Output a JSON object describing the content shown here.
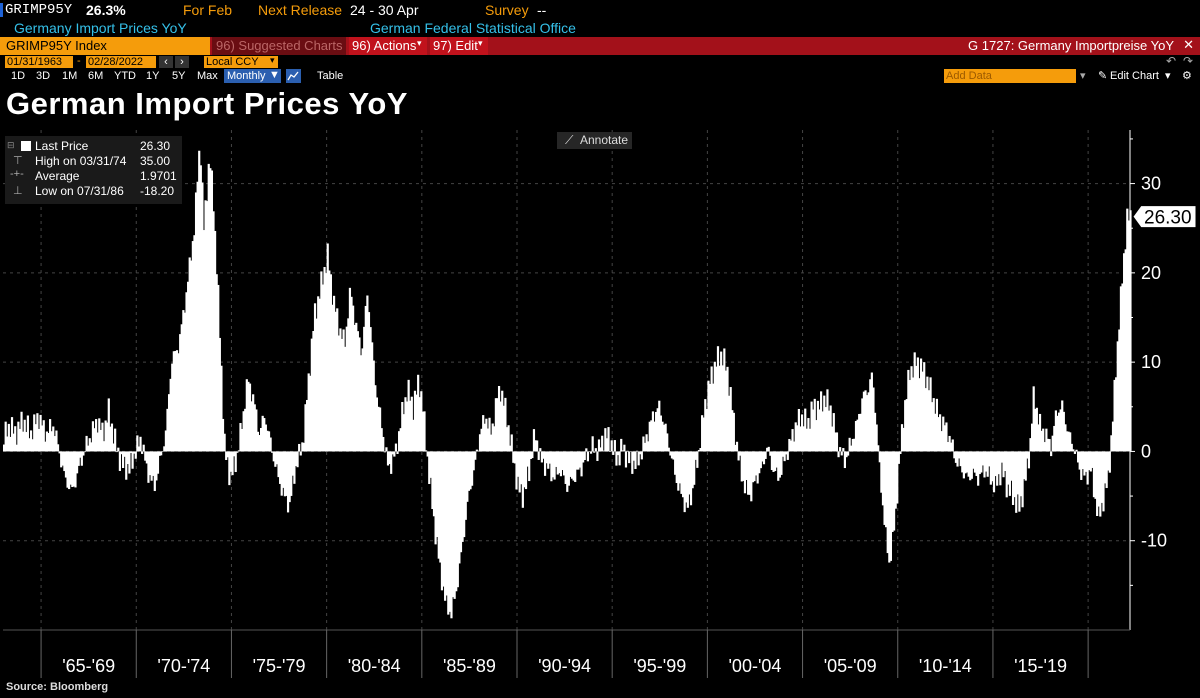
{
  "header": {
    "ticker": "GRIMP95Y",
    "last_value": "26.3%",
    "for_period": "For Feb",
    "next_release_label": "Next Release",
    "next_release_dates": "24 - 30 Apr",
    "survey_label": "Survey",
    "survey_value": "--",
    "description": "Germany Import Prices YoY",
    "source_agency": "German Federal Statistical Office"
  },
  "toolbar": {
    "security": "GRIMP95Y Index",
    "suggested_charts": "96) Suggested Charts",
    "actions": "96) Actions",
    "edit": "97) Edit",
    "chart_id": "G 1727: Germany Importpreise YoY",
    "start_date": "01/31/1963",
    "end_date": "02/28/2022",
    "currency": "Local CCY",
    "ranges": [
      "1D",
      "3D",
      "1M",
      "6M",
      "YTD",
      "1Y",
      "5Y",
      "Max"
    ],
    "frequency": "Monthly",
    "table": "Table",
    "add_data": "Add Data",
    "edit_chart": "Edit Chart"
  },
  "legend": {
    "last_price_label": "Last Price",
    "last_price": "26.30",
    "high_label": "High on 03/31/74",
    "high": "35.00",
    "average_label": "Average",
    "average": "1.9701",
    "low_label": "Low on 07/31/86",
    "low": "-18.20"
  },
  "annotate_label": "Annotate",
  "source": "Source: Bloomberg",
  "colors": {
    "background": "#000000",
    "bars": "#ffffff",
    "accent_orange": "#f59c0b",
    "menu_red": "#a3111a",
    "cyan": "#35c0e8"
  },
  "chart_data": {
    "type": "area",
    "title": "German Import Prices YoY",
    "series": [
      {
        "name": "GRIMP95Y Index",
        "anchors": [
          [
            1963.0,
            1.5
          ],
          [
            1963.3,
            3.0
          ],
          [
            1963.6,
            2.0
          ],
          [
            1964.0,
            3.5
          ],
          [
            1964.4,
            2.0
          ],
          [
            1964.8,
            4.0
          ],
          [
            1965.2,
            2.0
          ],
          [
            1965.6,
            3.0
          ],
          [
            1965.9,
            0.0
          ],
          [
            1966.2,
            -3.0
          ],
          [
            1966.6,
            -4.5
          ],
          [
            1966.9,
            -2.0
          ],
          [
            1967.3,
            0.5
          ],
          [
            1967.6,
            2.0
          ],
          [
            1967.9,
            3.5
          ],
          [
            1968.2,
            2.0
          ],
          [
            1968.5,
            4.5
          ],
          [
            1968.9,
            0.5
          ],
          [
            1969.2,
            -1.5
          ],
          [
            1969.6,
            -2.0
          ],
          [
            1969.9,
            0.0
          ],
          [
            1970.2,
            1.5
          ],
          [
            1970.5,
            -2.0
          ],
          [
            1970.9,
            -4.0
          ],
          [
            1971.2,
            -1.0
          ],
          [
            1971.5,
            2.0
          ],
          [
            1971.8,
            10.0
          ],
          [
            1972.2,
            12.0
          ],
          [
            1972.6,
            18.0
          ],
          [
            1973.0,
            25.0
          ],
          [
            1973.3,
            35.0
          ],
          [
            1973.5,
            25.0
          ],
          [
            1973.8,
            33.0
          ],
          [
            1974.0,
            28.0
          ],
          [
            1974.3,
            15.0
          ],
          [
            1974.6,
            0.0
          ],
          [
            1974.9,
            -3.0
          ],
          [
            1975.2,
            -1.0
          ],
          [
            1975.5,
            3.0
          ],
          [
            1975.8,
            8.0
          ],
          [
            1976.1,
            6.0
          ],
          [
            1976.4,
            2.0
          ],
          [
            1976.7,
            4.0
          ],
          [
            1977.0,
            1.0
          ],
          [
            1977.3,
            -2.0
          ],
          [
            1977.7,
            -5.0
          ],
          [
            1978.0,
            -6.0
          ],
          [
            1978.3,
            -2.0
          ],
          [
            1978.7,
            1.0
          ],
          [
            1979.0,
            8.0
          ],
          [
            1979.3,
            15.0
          ],
          [
            1979.7,
            19.0
          ],
          [
            1980.0,
            22.0
          ],
          [
            1980.3,
            17.0
          ],
          [
            1980.6,
            14.0
          ],
          [
            1980.9,
            12.0
          ],
          [
            1981.2,
            18.0
          ],
          [
            1981.5,
            14.0
          ],
          [
            1981.8,
            11.0
          ],
          [
            1982.1,
            18.0
          ],
          [
            1982.4,
            10.0
          ],
          [
            1982.6,
            6.0
          ],
          [
            1982.9,
            2.0
          ],
          [
            1983.2,
            -2.0
          ],
          [
            1983.6,
            0.0
          ],
          [
            1983.9,
            4.0
          ],
          [
            1984.2,
            7.0
          ],
          [
            1984.5,
            5.0
          ],
          [
            1984.8,
            8.0
          ],
          [
            1985.0,
            5.0
          ],
          [
            1985.3,
            -2.0
          ],
          [
            1985.6,
            -8.0
          ],
          [
            1985.9,
            -13.0
          ],
          [
            1986.2,
            -17.0
          ],
          [
            1986.5,
            -18.2
          ],
          [
            1986.8,
            -15.0
          ],
          [
            1987.1,
            -10.0
          ],
          [
            1987.4,
            -5.0
          ],
          [
            1987.7,
            -2.0
          ],
          [
            1988.0,
            2.0
          ],
          [
            1988.3,
            4.0
          ],
          [
            1988.6,
            2.0
          ],
          [
            1988.9,
            6.0
          ],
          [
            1989.1,
            7.0
          ],
          [
            1989.4,
            4.0
          ],
          [
            1989.7,
            0.0
          ],
          [
            1990.0,
            -4.0
          ],
          [
            1990.3,
            -5.0
          ],
          [
            1990.6,
            -2.0
          ],
          [
            1990.9,
            2.0
          ],
          [
            1991.2,
            -1.0
          ],
          [
            1991.6,
            -2.0
          ],
          [
            1991.9,
            -3.0
          ],
          [
            1992.2,
            -2.0
          ],
          [
            1992.6,
            -4.0
          ],
          [
            1992.9,
            -3.0
          ],
          [
            1993.3,
            -2.0
          ],
          [
            1993.6,
            -0.5
          ],
          [
            1993.9,
            0.5
          ],
          [
            1994.2,
            0.0
          ],
          [
            1994.6,
            2.0
          ],
          [
            1994.9,
            1.0
          ],
          [
            1995.2,
            -1.0
          ],
          [
            1995.5,
            0.5
          ],
          [
            1995.8,
            -1.0
          ],
          [
            1996.2,
            -1.5
          ],
          [
            1996.5,
            0.0
          ],
          [
            1996.8,
            2.0
          ],
          [
            1997.1,
            4.0
          ],
          [
            1997.4,
            5.0
          ],
          [
            1997.7,
            3.0
          ],
          [
            1998.0,
            0.0
          ],
          [
            1998.3,
            -3.0
          ],
          [
            1998.6,
            -5.0
          ],
          [
            1998.9,
            -6.5
          ],
          [
            1999.2,
            -4.0
          ],
          [
            1999.5,
            0.0
          ],
          [
            1999.8,
            5.0
          ],
          [
            2000.1,
            8.0
          ],
          [
            2000.4,
            10.0
          ],
          [
            2000.7,
            11.0
          ],
          [
            2001.0,
            9.0
          ],
          [
            2001.3,
            4.0
          ],
          [
            2001.6,
            -1.0
          ],
          [
            2001.9,
            -4.0
          ],
          [
            2002.2,
            -5.0
          ],
          [
            2002.5,
            -3.0
          ],
          [
            2002.8,
            -2.0
          ],
          [
            2003.1,
            0.5
          ],
          [
            2003.4,
            -2.0
          ],
          [
            2003.7,
            -3.0
          ],
          [
            2004.0,
            -1.0
          ],
          [
            2004.3,
            1.0
          ],
          [
            2004.6,
            3.0
          ],
          [
            2004.9,
            4.0
          ],
          [
            2005.2,
            3.0
          ],
          [
            2005.5,
            5.0
          ],
          [
            2005.8,
            5.0
          ],
          [
            2006.1,
            6.0
          ],
          [
            2006.4,
            5.0
          ],
          [
            2006.7,
            2.0
          ],
          [
            2006.9,
            0.0
          ],
          [
            2007.2,
            -1.0
          ],
          [
            2007.5,
            1.0
          ],
          [
            2007.8,
            3.0
          ],
          [
            2008.1,
            6.0
          ],
          [
            2008.4,
            7.0
          ],
          [
            2008.6,
            8.5
          ],
          [
            2008.8,
            4.0
          ],
          [
            2009.0,
            -2.0
          ],
          [
            2009.3,
            -9.0
          ],
          [
            2009.5,
            -12.5
          ],
          [
            2009.8,
            -8.0
          ],
          [
            2010.0,
            -2.0
          ],
          [
            2010.3,
            5.0
          ],
          [
            2010.6,
            9.0
          ],
          [
            2010.9,
            10.0
          ],
          [
            2011.2,
            9.5
          ],
          [
            2011.5,
            8.0
          ],
          [
            2011.8,
            6.0
          ],
          [
            2012.1,
            4.0
          ],
          [
            2012.4,
            3.0
          ],
          [
            2012.7,
            1.5
          ],
          [
            2013.0,
            -1.0
          ],
          [
            2013.3,
            -2.0
          ],
          [
            2013.6,
            -3.0
          ],
          [
            2013.9,
            -2.5
          ],
          [
            2014.2,
            -3.0
          ],
          [
            2014.5,
            -2.0
          ],
          [
            2014.8,
            -3.0
          ],
          [
            2015.1,
            -4.0
          ],
          [
            2015.4,
            -2.0
          ],
          [
            2015.7,
            -4.0
          ],
          [
            2016.0,
            -5.0
          ],
          [
            2016.3,
            -6.5
          ],
          [
            2016.6,
            -4.0
          ],
          [
            2016.9,
            0.5
          ],
          [
            2017.1,
            6.5
          ],
          [
            2017.4,
            3.0
          ],
          [
            2017.7,
            2.0
          ],
          [
            2018.0,
            0.5
          ],
          [
            2018.3,
            4.5
          ],
          [
            2018.6,
            5.0
          ],
          [
            2018.9,
            2.0
          ],
          [
            2019.2,
            0.5
          ],
          [
            2019.5,
            -2.0
          ],
          [
            2019.8,
            -3.0
          ],
          [
            2020.1,
            -2.0
          ],
          [
            2020.3,
            -5.0
          ],
          [
            2020.5,
            -7.5
          ],
          [
            2020.8,
            -5.0
          ],
          [
            2021.0,
            -3.0
          ],
          [
            2021.2,
            2.0
          ],
          [
            2021.4,
            9.0
          ],
          [
            2021.6,
            15.0
          ],
          [
            2021.8,
            21.0
          ],
          [
            2022.0,
            26.0
          ],
          [
            2022.17,
            26.3
          ]
        ]
      }
    ],
    "x_tick_labels": [
      "'65-'69",
      "'70-'74",
      "'75-'79",
      "'80-'84",
      "'85-'89",
      "'90-'94",
      "'95-'99",
      "'00-'04",
      "'05-'09",
      "'10-'14",
      "'15-'19"
    ],
    "x_tick_years": [
      1965,
      1970,
      1975,
      1980,
      1985,
      1990,
      1995,
      2000,
      2005,
      2010,
      2015,
      2020
    ],
    "y_ticks": [
      -10,
      0,
      10,
      20,
      30
    ],
    "y_tick_labels": [
      "-10",
      "0",
      "10",
      "20",
      "30"
    ],
    "xlim": [
      1963.0,
      2022.2
    ],
    "ylim": [
      -20,
      36
    ],
    "last_value_label": "26.30",
    "last_value": 26.3,
    "xlabel": "",
    "ylabel": ""
  }
}
